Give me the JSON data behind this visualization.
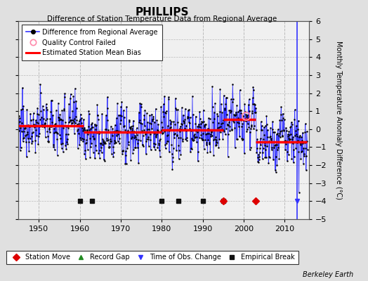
{
  "title": "PHILLIPS",
  "subtitle": "Difference of Station Temperature Data from Regional Average",
  "ylabel": "Monthly Temperature Anomaly Difference (°C)",
  "xlim": [
    1945,
    2016
  ],
  "ylim": [
    -5,
    6
  ],
  "yticks": [
    -5,
    -4,
    -3,
    -2,
    -1,
    0,
    1,
    2,
    3,
    4,
    5,
    6
  ],
  "xticks": [
    1950,
    1960,
    1970,
    1980,
    1990,
    2000,
    2010
  ],
  "bg_color": "#e0e0e0",
  "plot_bg_color": "#f0f0f0",
  "line_color": "#3333ff",
  "dot_color": "#000000",
  "bias_color": "#ff0000",
  "credit": "Berkeley Earth",
  "empirical_breaks": [
    1960,
    1963,
    1980,
    1984,
    1990,
    1995
  ],
  "station_moves": [
    1995,
    2003
  ],
  "time_obs_change_line": 2013,
  "bias_segments": [
    {
      "xstart": 1945,
      "xend": 1961,
      "yval": 0.2
    },
    {
      "xstart": 1961,
      "xend": 1980,
      "yval": -0.18
    },
    {
      "xstart": 1980,
      "xend": 1995,
      "yval": -0.05
    },
    {
      "xstart": 1995,
      "xend": 2003,
      "yval": 0.55
    },
    {
      "xstart": 2003,
      "xend": 2015.5,
      "yval": -0.7
    }
  ],
  "qc_failed_x": 2000.5,
  "qc_failed_y": 0.75,
  "marker_y": -4.0,
  "seed": 77
}
